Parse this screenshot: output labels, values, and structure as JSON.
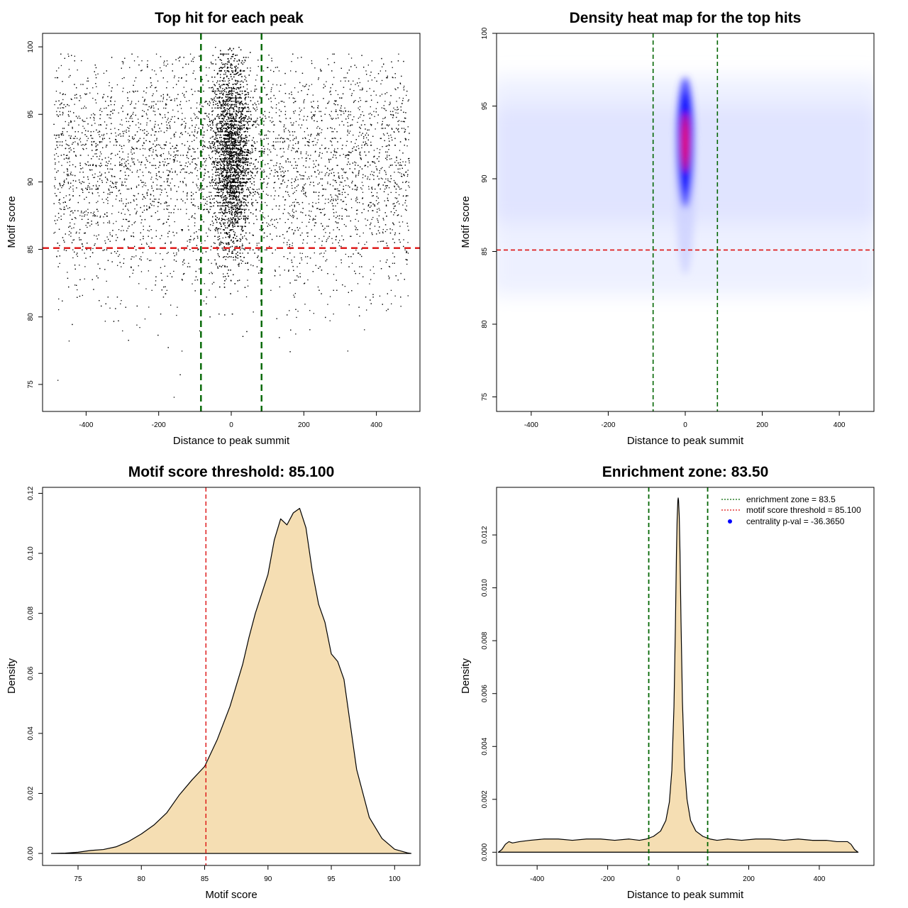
{
  "chart_data": [
    {
      "type": "scatter",
      "title": "Top hit for each peak",
      "xlabel": "Distance to peak summit",
      "ylabel": "Motif score",
      "xlim": [
        -520,
        520
      ],
      "ylim": [
        73,
        101
      ],
      "xticks": [
        -400,
        -200,
        0,
        200,
        400
      ],
      "yticks": [
        75,
        80,
        85,
        90,
        95,
        100
      ],
      "hlines": [
        {
          "y": 85.1,
          "color": "#dd1111",
          "style": "dashed"
        }
      ],
      "vlines": [
        {
          "x": -83.5,
          "color": "#006600",
          "style": "dashed"
        },
        {
          "x": 83.5,
          "color": "#006600",
          "style": "dashed"
        }
      ],
      "points": {
        "description": "approximately 14000 points: background uniform over x in [-490, 490] with score mostly 80-99; dense central cluster at x near 0 (sd about 25) with score 83-98",
        "background": {
          "x_range": [
            -490,
            490
          ],
          "score_center": 91,
          "score_sd": 4.5,
          "score_range": [
            74,
            99.5
          ]
        },
        "central": {
          "x_center": 0,
          "x_sd": 25,
          "score_center": 92,
          "score_sd": 3.5,
          "score_range": [
            79,
            100
          ]
        }
      }
    },
    {
      "type": "heatmap",
      "title": "Density heat map for the top hits",
      "xlabel": "Distance to peak summit",
      "ylabel": "Motif score",
      "xlim": [
        -490,
        490
      ],
      "ylim": [
        74,
        100
      ],
      "xticks": [
        -400,
        -200,
        0,
        200,
        400
      ],
      "yticks": [
        75,
        80,
        85,
        90,
        95,
        100
      ],
      "hlines": [
        {
          "y": 85.1,
          "color": "#dd1111",
          "style": "dashed"
        }
      ],
      "vlines": [
        {
          "x": -83.5,
          "color": "#006600",
          "style": "dashed"
        },
        {
          "x": 83.5,
          "color": "#006600",
          "style": "dashed"
        }
      ],
      "hotspot": {
        "x": 0,
        "y": 92.5,
        "x_sd": 10,
        "y_sd": 2.5
      },
      "colors": [
        "#ffffff",
        "#0000ff",
        "#ff0000"
      ]
    },
    {
      "type": "area",
      "title": "Motif score threshold: 85.100",
      "xlabel": "Motif score",
      "ylabel": "Density",
      "xlim": [
        72.2,
        102
      ],
      "ylim": [
        -0.004,
        0.122
      ],
      "xticks": [
        75,
        80,
        85,
        90,
        95,
        100
      ],
      "yticks": [
        0.0,
        0.02,
        0.04,
        0.06,
        0.08,
        0.1,
        0.12
      ],
      "ytick_labels": [
        "0.00",
        "0.02",
        "0.04",
        "0.06",
        "0.08",
        "0.10",
        "0.12"
      ],
      "vlines": [
        {
          "x": 85.1,
          "color": "#dd1111",
          "style": "dashed"
        }
      ],
      "fill": "#f5deb3",
      "x": [
        72.9,
        74,
        75,
        76,
        77,
        78,
        79,
        80,
        81,
        82,
        83,
        84,
        85,
        86,
        87,
        88,
        88.5,
        89,
        90,
        90.5,
        91,
        91.5,
        92,
        92.5,
        93,
        93.5,
        94,
        94.5,
        95,
        95.5,
        96,
        97,
        98,
        99,
        100,
        101,
        101.3
      ],
      "y": [
        0.0,
        0.0001,
        0.0004,
        0.001,
        0.0013,
        0.0022,
        0.004,
        0.0065,
        0.0095,
        0.0135,
        0.0195,
        0.0245,
        0.029,
        0.038,
        0.049,
        0.063,
        0.072,
        0.08,
        0.093,
        0.1045,
        0.1115,
        0.1095,
        0.1135,
        0.115,
        0.1085,
        0.094,
        0.083,
        0.077,
        0.0665,
        0.064,
        0.058,
        0.028,
        0.012,
        0.005,
        0.0014,
        0.0002,
        0.0
      ]
    },
    {
      "type": "area",
      "title": "Enrichment zone: 83.50",
      "xlabel": "Distance to peak summit",
      "ylabel": "Density",
      "xlim": [
        -515,
        555
      ],
      "ylim": [
        -0.0005,
        0.0138
      ],
      "xticks": [
        -400,
        -200,
        0,
        200,
        400
      ],
      "yticks": [
        0.0,
        0.002,
        0.004,
        0.006,
        0.008,
        0.01,
        0.012
      ],
      "ytick_labels": [
        "0.000",
        "0.002",
        "0.004",
        "0.006",
        "0.008",
        "0.010",
        "0.012"
      ],
      "vlines": [
        {
          "x": -83.5,
          "color": "#006600",
          "style": "dashed"
        },
        {
          "x": 83.5,
          "color": "#006600",
          "style": "dashed"
        }
      ],
      "fill": "#f5deb3",
      "x": [
        -510,
        -500,
        -490,
        -480,
        -470,
        -450,
        -420,
        -380,
        -340,
        -300,
        -260,
        -220,
        -180,
        -140,
        -110,
        -90,
        -70,
        -50,
        -35,
        -25,
        -18,
        -12,
        -8,
        -5,
        -3,
        -1,
        0,
        1,
        3,
        5,
        8,
        12,
        18,
        25,
        35,
        50,
        70,
        90,
        110,
        140,
        180,
        220,
        260,
        300,
        340,
        380,
        420,
        450,
        470,
        480,
        490,
        500,
        510
      ],
      "y": [
        0.0,
        0.0001,
        0.0003,
        0.0004,
        0.00035,
        0.0004,
        0.00045,
        0.0005,
        0.0005,
        0.00045,
        0.0005,
        0.0005,
        0.00045,
        0.0005,
        0.00045,
        0.0005,
        0.0006,
        0.0008,
        0.0012,
        0.0019,
        0.0031,
        0.0055,
        0.0085,
        0.0113,
        0.0126,
        0.0133,
        0.0134,
        0.0133,
        0.0127,
        0.0114,
        0.0087,
        0.0057,
        0.0032,
        0.002,
        0.0012,
        0.0008,
        0.0006,
        0.0005,
        0.00045,
        0.0005,
        0.00045,
        0.0005,
        0.0005,
        0.00045,
        0.0005,
        0.00045,
        0.00045,
        0.0004,
        0.0004,
        0.0004,
        0.0003,
        0.0001,
        0.0
      ],
      "legend": {
        "position": "top-right",
        "entries": [
          {
            "label": "enrichment zone = 83.5",
            "color": "#006600",
            "style": "dotted-line"
          },
          {
            "label": "motif score threshold = 85.100",
            "color": "#dd1111",
            "style": "dotted-line"
          },
          {
            "label": "centrality p-val = -36.3650",
            "color": "#0000ff",
            "style": "point"
          }
        ]
      }
    }
  ]
}
